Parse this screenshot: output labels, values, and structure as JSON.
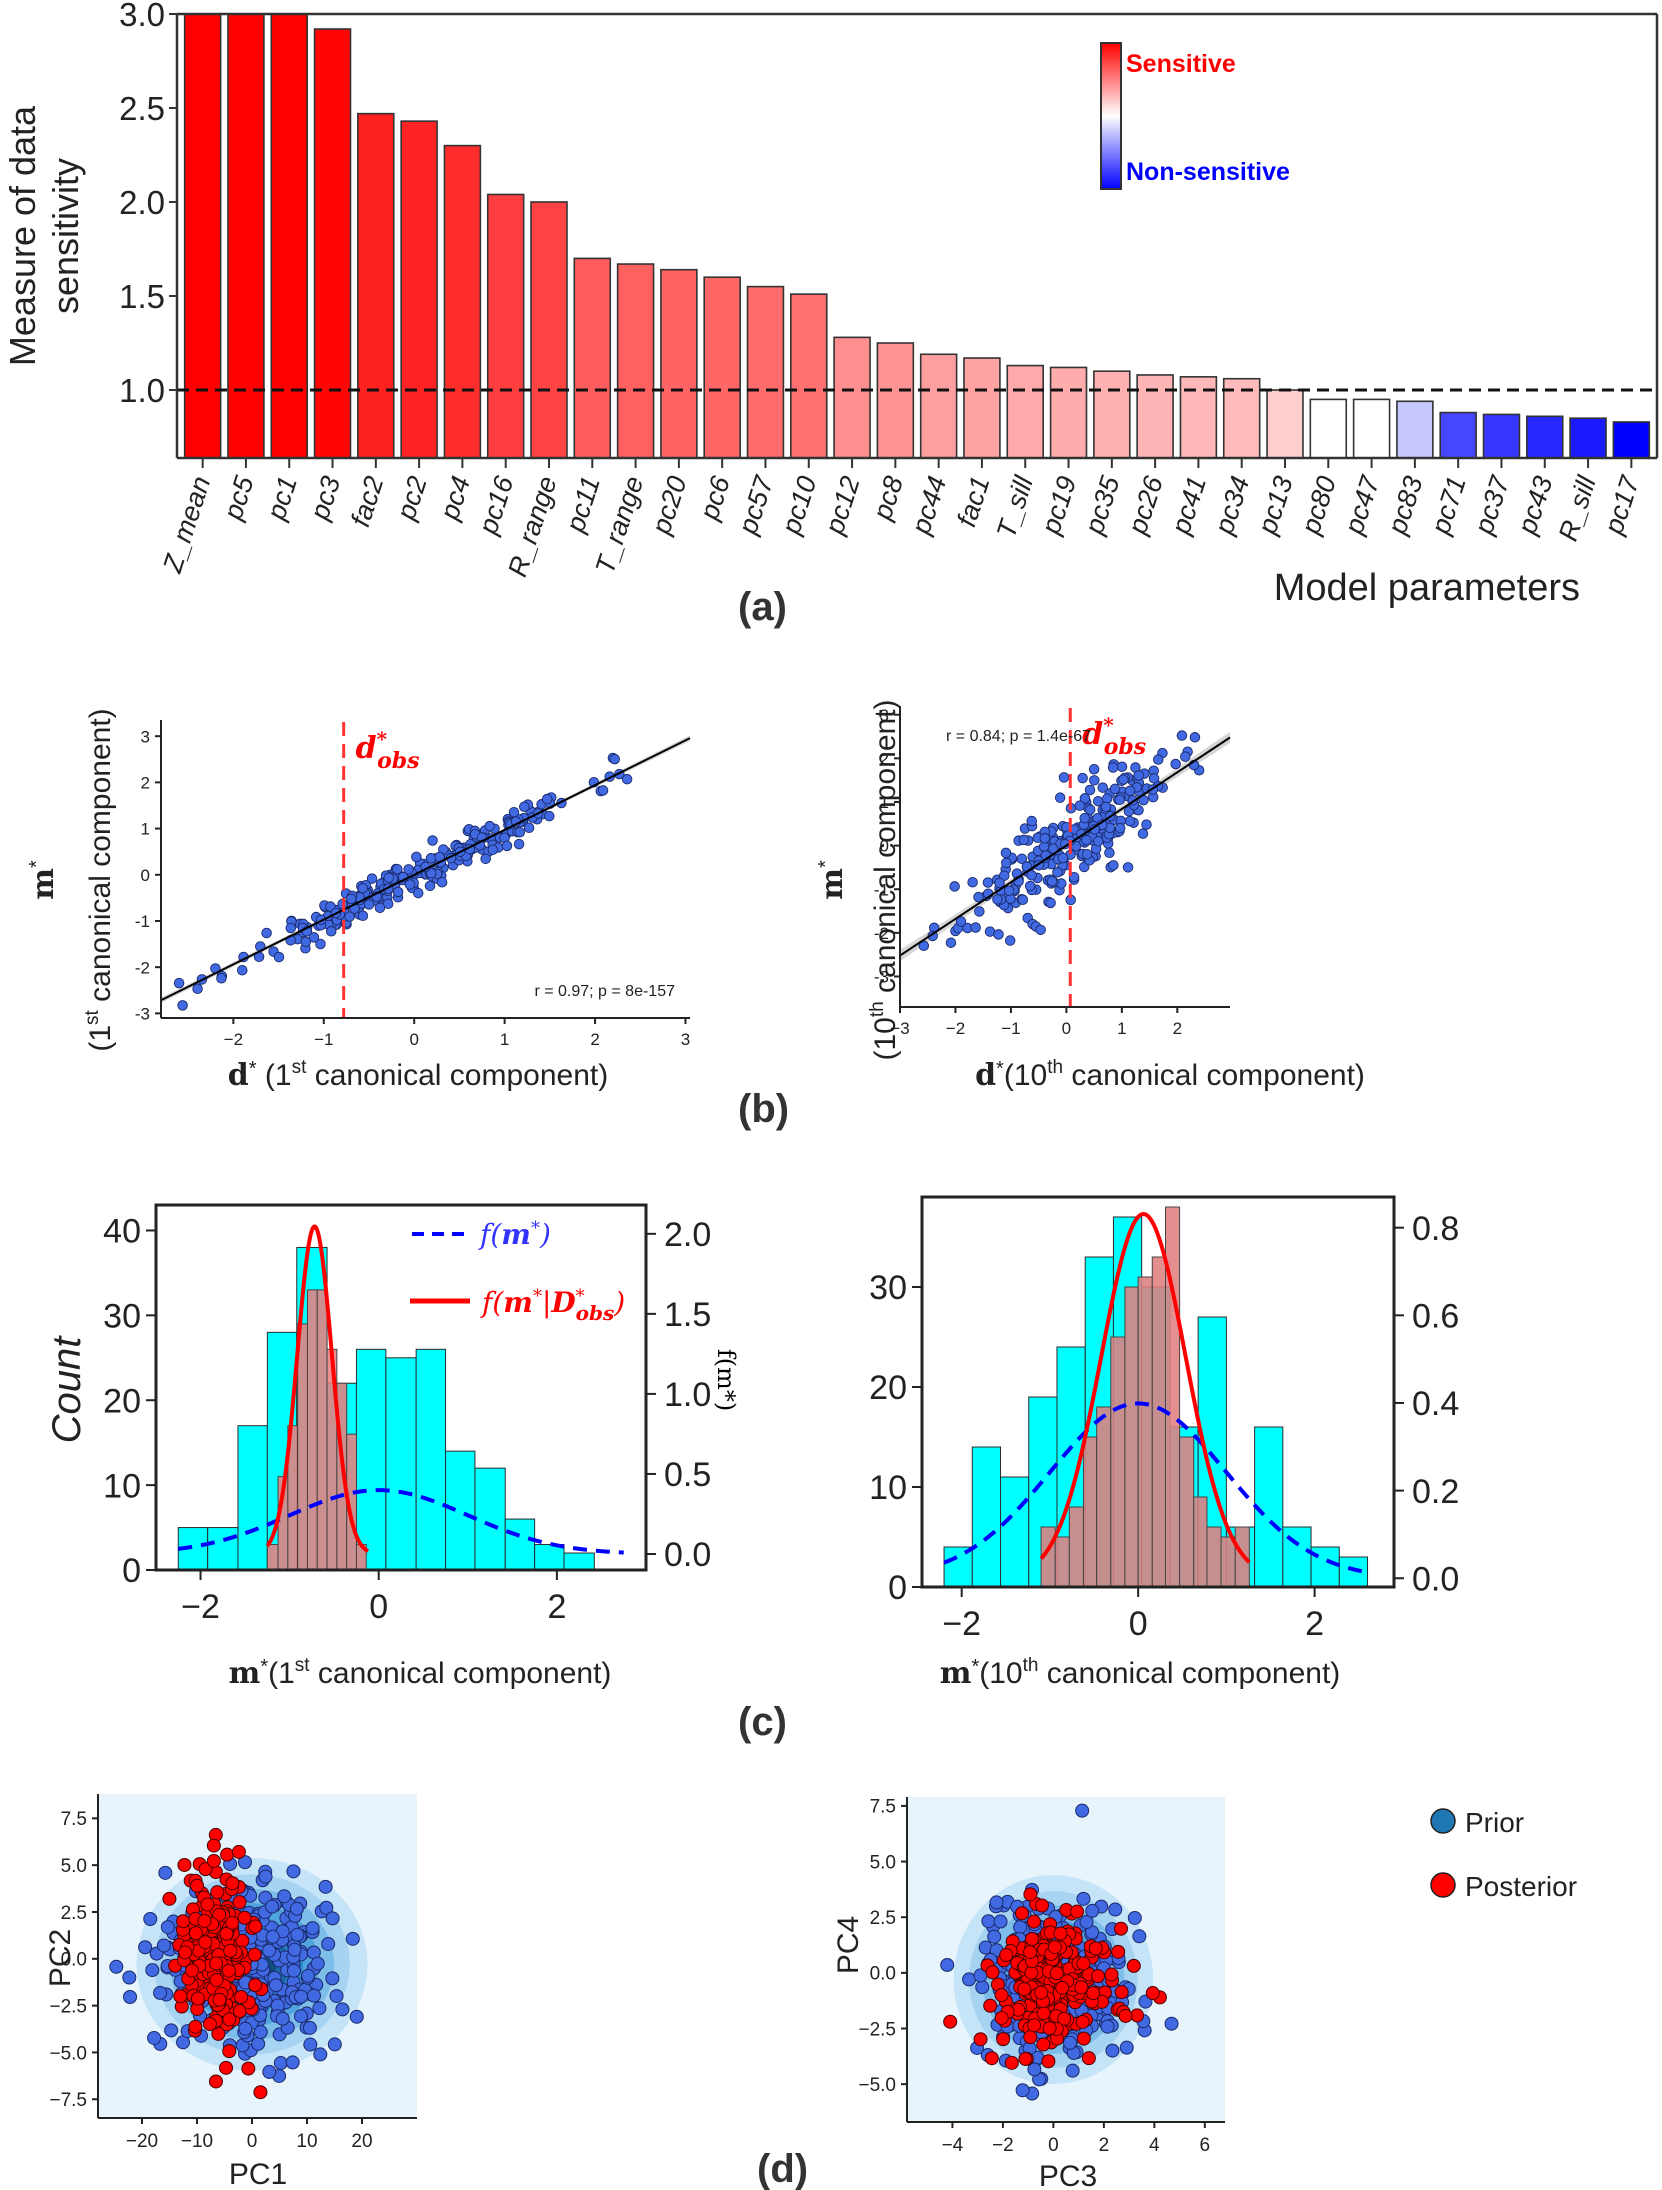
{
  "panel_labels": [
    "(a)",
    "(b)",
    "(c)",
    "(d)"
  ],
  "chart_data": [
    {
      "id": "a",
      "type": "bar",
      "title": "",
      "xlabel": "Model parameters",
      "ylabel": "Measure of data sensitivity",
      "ylabel_lines": [
        "Measure of data",
        "sensitivity"
      ],
      "ylim": [
        0.75,
        3.0
      ],
      "yticks": [
        1.0,
        1.5,
        2.0,
        2.5,
        3.0
      ],
      "ytick_labels": [
        "1.0",
        "1.5",
        "2.0",
        "2.5",
        "3.0"
      ],
      "reference_line": {
        "y": 1.0,
        "style": "dashed",
        "color": "#000000"
      },
      "categories": [
        "Z_mean",
        "pc5",
        "pc1",
        "pc3",
        "fac2",
        "pc2",
        "pc4",
        "pc16",
        "R_range",
        "pc11",
        "T_range",
        "pc20",
        "pc6",
        "pc57",
        "pc10",
        "pc12",
        "pc8",
        "pc44",
        "fac1",
        "T_sill",
        "pc19",
        "pc35",
        "pc26",
        "pc41",
        "pc34",
        "pc13",
        "pc80",
        "pc47",
        "pc83",
        "pc71",
        "pc37",
        "pc43",
        "R_sill",
        "pc17"
      ],
      "values": [
        3.0,
        3.0,
        3.0,
        2.92,
        2.47,
        2.43,
        2.3,
        2.04,
        2.0,
        1.7,
        1.67,
        1.64,
        1.6,
        1.55,
        1.51,
        1.28,
        1.25,
        1.19,
        1.17,
        1.13,
        1.12,
        1.1,
        1.08,
        1.07,
        1.06,
        1.0,
        0.95,
        0.95,
        0.94,
        0.88,
        0.87,
        0.86,
        0.85,
        0.83
      ],
      "colorbar": {
        "high_label": "Sensitive",
        "low_label": "Non-sensitive",
        "high_color": "#ff0000",
        "mid_color": "#ffffff",
        "low_color": "#0000ff",
        "placement": "top-right"
      }
    },
    {
      "id": "b-left",
      "type": "scatter",
      "xlabel": "d* (1st canonical component)",
      "xlabel_parts": {
        "bold": "d",
        "sup1": "*",
        "pre": " (1",
        "sup2": "st",
        "post": " canonical component)"
      },
      "ylabel_parts": {
        "bold": "m",
        "sup1": "*",
        "pre": "(1",
        "sup2": "st",
        "post": " canonical component)"
      },
      "xlim": [
        -2.8,
        3.05
      ],
      "ylim": [
        -3.1,
        3.35
      ],
      "xticks": [
        -2,
        -1,
        0,
        1,
        2,
        3
      ],
      "yticks": [
        -3,
        -2,
        -1,
        0,
        1,
        2,
        3
      ],
      "annotation": "r = 0.97; p = 8e-157",
      "annotation_placement": "bottom-right",
      "obs_line": {
        "x": -0.78,
        "label_main": "d",
        "label_sup": "*",
        "label_sub": "obs",
        "color": "#ff3333"
      },
      "regression": {
        "slope": 0.97,
        "intercept": 0.0
      },
      "n_points": 260,
      "noise": 0.2,
      "seed": 11
    },
    {
      "id": "b-right",
      "type": "scatter",
      "xlabel": "d*(10th canonical component)",
      "xlabel_parts": {
        "bold": "d",
        "sup1": "*",
        "pre": "(10",
        "sup2": "th",
        "post": " canonical component)"
      },
      "ylabel_parts": {
        "bold": "m",
        "sup1": "*",
        "pre": "(10",
        "sup2": "th",
        "post": " canonical component)"
      },
      "xlim": [
        -3.0,
        2.95
      ],
      "ylim": [
        -3.7,
        3.2
      ],
      "xticks": [
        -3,
        -2,
        -1,
        0,
        1,
        2
      ],
      "yticks": [
        -3,
        -2,
        -1,
        0,
        1,
        2,
        3
      ],
      "annotation": "r = 0.84; p = 1.4e-67",
      "annotation_placement": "top-left",
      "obs_line": {
        "x": 0.07,
        "label_main": "d",
        "label_sup": "*",
        "label_sub": "obs",
        "color": "#ff3333"
      },
      "regression": {
        "slope": 0.84,
        "intercept": 0.0
      },
      "n_points": 260,
      "noise": 0.52,
      "seed": 23
    },
    {
      "id": "c-left",
      "type": "bar",
      "subtype": "histogram",
      "xlabel": "m*(1st canonical component)",
      "xlabel_parts": {
        "bold": "m",
        "sup1": "*",
        "pre": "(1",
        "sup2": "st",
        "post": " canonical component)"
      },
      "ylabel": "Count",
      "y2label": "f(m*)",
      "xlim": [
        -2.5,
        3.0
      ],
      "ylim": [
        0,
        43
      ],
      "xticks": [
        -2,
        0,
        2
      ],
      "yticks": [
        0,
        10,
        20,
        30,
        40
      ],
      "y2lim": [
        -0.1,
        2.18
      ],
      "y2ticks": [
        0.0,
        0.5,
        1.0,
        1.5,
        2.0
      ],
      "y2tick_labels": [
        "0.0",
        "0.5",
        "1.0",
        "1.5",
        "2.0"
      ],
      "prior_hist": {
        "bin_edges": [
          -2.25,
          -1.92,
          -1.58,
          -1.25,
          -0.92,
          -0.58,
          -0.25,
          0.08,
          0.42,
          0.75,
          1.08,
          1.42,
          1.75,
          2.08,
          2.42,
          2.75
        ],
        "counts": [
          5,
          5,
          17,
          28,
          38,
          22,
          26,
          25,
          26,
          14,
          12,
          6,
          3,
          2,
          0
        ],
        "color": "#00ffff"
      },
      "posterior_hist": {
        "bin_edges": [
          -1.25,
          -1.13,
          -1.02,
          -0.91,
          -0.8,
          -0.69,
          -0.58,
          -0.47,
          -0.36,
          -0.25,
          -0.14
        ],
        "counts": [
          3,
          11,
          17,
          29,
          33,
          33,
          26,
          22,
          16,
          3,
          1
        ],
        "color": "#e88080"
      },
      "prior_pdf": {
        "label": "f(m*)",
        "mean": 0.0,
        "std": 1.0,
        "color": "#0000ff",
        "style": "dashed"
      },
      "posterior_pdf": {
        "label": "f(m*|D*obs)",
        "mean": -0.72,
        "std": 0.195,
        "color": "#ff0000",
        "style": "solid",
        "xrange": [
          -1.25,
          -0.12
        ]
      },
      "legend_placement": "top-right"
    },
    {
      "id": "c-right",
      "type": "bar",
      "subtype": "histogram",
      "xlabel": "m*(10th canonical component)",
      "xlabel_parts": {
        "bold": "m",
        "sup1": "*",
        "pre": "(10",
        "sup2": "th",
        "post": " canonical component)"
      },
      "xlim": [
        -2.45,
        2.9
      ],
      "ylim": [
        0,
        39
      ],
      "xticks": [
        -2,
        0,
        2
      ],
      "yticks": [
        0,
        10,
        20,
        30
      ],
      "y2lim": [
        -0.02,
        0.87
      ],
      "y2ticks": [
        0.0,
        0.2,
        0.4,
        0.6,
        0.8
      ],
      "y2tick_labels": [
        "0.0",
        "0.2",
        "0.4",
        "0.6",
        "0.8"
      ],
      "prior_hist": {
        "bin_edges": [
          -2.2,
          -1.88,
          -1.56,
          -1.24,
          -0.92,
          -0.6,
          -0.28,
          0.04,
          0.36,
          0.68,
          1.0,
          1.32,
          1.64,
          1.96,
          2.28,
          2.6
        ],
        "counts": [
          4,
          14,
          11,
          19,
          24,
          33,
          37,
          30,
          16,
          27,
          6,
          16,
          6,
          4,
          3
        ],
        "color": "#00ffff"
      },
      "posterior_hist": {
        "bin_edges": [
          -1.1,
          -0.94,
          -0.78,
          -0.62,
          -0.47,
          -0.31,
          -0.15,
          0.0,
          0.16,
          0.31,
          0.47,
          0.63,
          0.78,
          0.94,
          1.1,
          1.26
        ],
        "counts": [
          6,
          5,
          8,
          15,
          18,
          25,
          30,
          31,
          33,
          38,
          15,
          9,
          6,
          5,
          6
        ],
        "color": "#e08080"
      },
      "prior_pdf": {
        "mean": 0.0,
        "std": 1.0,
        "color": "#0000ff",
        "style": "dashed"
      },
      "posterior_pdf": {
        "mean": 0.06,
        "std": 0.48,
        "color": "#ff0000",
        "style": "solid",
        "xrange": [
          -1.1,
          1.26
        ]
      }
    },
    {
      "id": "d-left",
      "type": "scatter",
      "subtype": "kde+scatter",
      "xlabel": "PC1",
      "ylabel": "PC2",
      "xlim": [
        -28,
        30
      ],
      "ylim": [
        -8.5,
        8.8
      ],
      "xticks": [
        -20,
        -10,
        0,
        10,
        20
      ],
      "xtick_labels": [
        "−20",
        "−10",
        "0",
        "10",
        "20"
      ],
      "yticks": [
        -7.5,
        -5.0,
        -2.5,
        0.0,
        2.5,
        5.0,
        7.5
      ],
      "ytick_labels": [
        "−7.5",
        "−5.0",
        "−2.5",
        "0.0",
        "2.5",
        "5.0",
        "7.5"
      ],
      "prior": {
        "mean": [
          0,
          -0.3
        ],
        "std": [
          8.5,
          2.3
        ],
        "n": 300,
        "color": "#4169e1"
      },
      "posterior": {
        "mean": [
          -7,
          0
        ],
        "std": [
          3.2,
          2.3
        ],
        "n": 220,
        "color": "#ff0000"
      },
      "seed": 5
    },
    {
      "id": "d-right",
      "type": "scatter",
      "subtype": "kde+scatter",
      "xlabel": "PC3",
      "ylabel": "PC4",
      "xlim": [
        -5.8,
        6.8
      ],
      "ylim": [
        -6.7,
        7.9
      ],
      "xticks": [
        -4,
        -2,
        0,
        2,
        4,
        6
      ],
      "xtick_labels": [
        "−4",
        "−2",
        "0",
        "2",
        "4",
        "6"
      ],
      "yticks": [
        -5.0,
        -2.5,
        0.0,
        2.5,
        5.0,
        7.5
      ],
      "ytick_labels": [
        "−5.0",
        "−2.5",
        "0.0",
        "2.5",
        "5.0",
        "7.5"
      ],
      "prior": {
        "mean": [
          0,
          -0.3
        ],
        "std": [
          1.6,
          1.9
        ],
        "n": 300,
        "color": "#4169e1"
      },
      "posterior": {
        "mean": [
          0,
          -0.4
        ],
        "std": [
          1.3,
          1.4
        ],
        "n": 260,
        "color": "#ff0000"
      },
      "legend": [
        {
          "label": "Prior",
          "color": "#1f77b4"
        },
        {
          "label": "Posterior",
          "color": "#ff0000"
        }
      ],
      "legend_placement": "outside-top-right",
      "seed": 9
    }
  ]
}
